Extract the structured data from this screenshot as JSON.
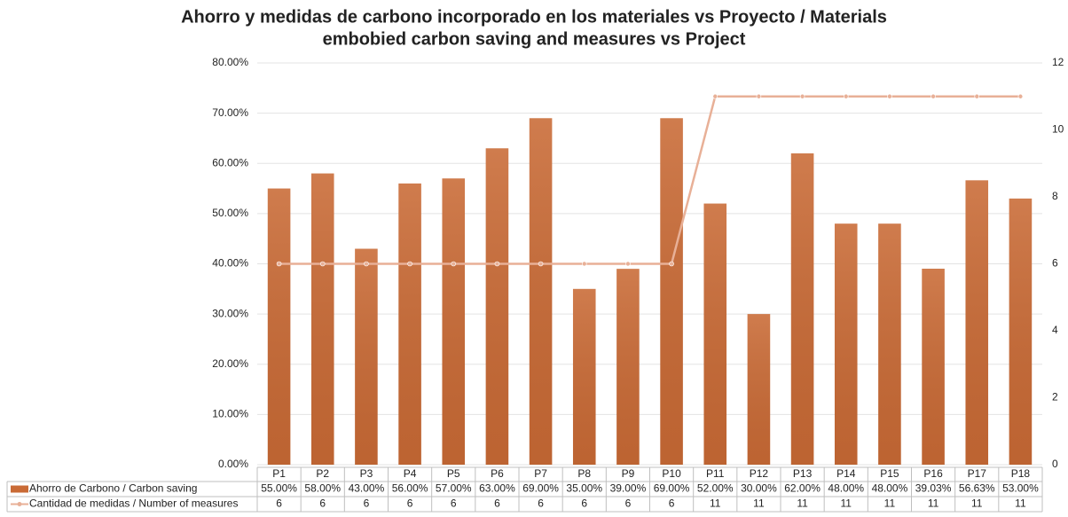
{
  "chart_data": {
    "type": "bar_line",
    "title": "Ahorro y medidas de carbono incorporado en los materiales vs Proyecto / Materials",
    "subtitle": "embobied carbon saving and measures vs Project",
    "categories": [
      "P1",
      "P2",
      "P3",
      "P4",
      "P5",
      "P6",
      "P7",
      "P8",
      "P9",
      "P10",
      "P11",
      "P12",
      "P13",
      "P14",
      "P15",
      "P16",
      "P17",
      "P18"
    ],
    "series": [
      {
        "name": "Ahorro de Carbono / Carbon saving",
        "type": "bar",
        "color": "#c96a35",
        "values": [
          55,
          58,
          43,
          56,
          57,
          63,
          69,
          35,
          39,
          69,
          52,
          30,
          62,
          48,
          48,
          39.03,
          56.63,
          53
        ],
        "value_labels": [
          "55.00%",
          "58.00%",
          "43.00%",
          "56.00%",
          "57.00%",
          "63.00%",
          "69.00%",
          "35.00%",
          "39.00%",
          "69.00%",
          "52.00%",
          "30.00%",
          "62.00%",
          "48.00%",
          "48.00%",
          "39.03%",
          "56.63%",
          "53.00%"
        ]
      },
      {
        "name": "Cantidad de medidas / Number of measures",
        "type": "line",
        "axis": "y2",
        "color": "#e8b097",
        "values": [
          6,
          6,
          6,
          6,
          6,
          6,
          6,
          6,
          6,
          6,
          11,
          11,
          11,
          11,
          11,
          11,
          11,
          11
        ]
      }
    ],
    "ylim": [
      0,
      80
    ],
    "yticks": [
      {
        "value": 0,
        "label": "0.00%"
      },
      {
        "value": 10,
        "label": "10.00%"
      },
      {
        "value": 20,
        "label": "20.00%"
      },
      {
        "value": 30,
        "label": "30.00%"
      },
      {
        "value": 40,
        "label": "40.00%"
      },
      {
        "value": 50,
        "label": "50.00%"
      },
      {
        "value": 60,
        "label": "60.00%"
      },
      {
        "value": 70,
        "label": "70.00%"
      },
      {
        "value": 80,
        "label": "80.00%"
      }
    ],
    "y2lim": [
      0,
      12
    ],
    "y2ticks": [
      0,
      2,
      4,
      6,
      8,
      10,
      12
    ],
    "grid": true
  }
}
